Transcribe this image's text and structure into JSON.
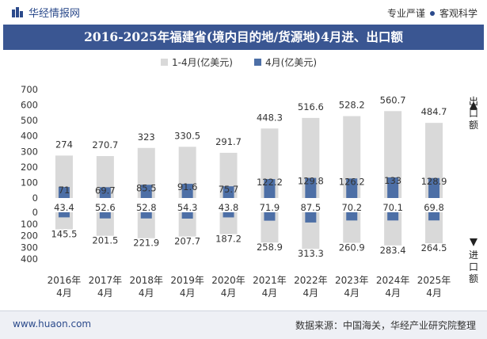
{
  "header": {
    "brand": "华经情报网",
    "tag1": "专业严谨",
    "tag2": "客观科学"
  },
  "title": "2016-2025年福建省(境内目的地/货源地)4月进、出口额",
  "legend": {
    "series1": "1-4月(亿美元)",
    "series2": "4月(亿美元)"
  },
  "right_labels": {
    "export": "出口额",
    "import": "进口额"
  },
  "footer": {
    "site": "www.huaon.com",
    "source": "数据来源：中国海关，华经产业研究院整理"
  },
  "colors": {
    "cumulative": "#d9d9d9",
    "monthly": "#4d6fa6",
    "title_bg": "#3a5692"
  },
  "chart_data": {
    "type": "bar",
    "categories": [
      "2016年\n4月",
      "2017年\n4月",
      "2018年\n4月",
      "2019年\n4月",
      "2020年\n4月",
      "2021年\n4月",
      "2022年\n4月",
      "2023年\n4月",
      "2024年\n4月",
      "2025年\n4月"
    ],
    "series": [
      {
        "name": "1-4月(亿美元)",
        "export": [
          274,
          270.7,
          323,
          330.5,
          291.7,
          448.3,
          516.6,
          528.2,
          560.7,
          484.7
        ],
        "import": [
          145.5,
          201.5,
          221.9,
          207.7,
          187.2,
          258.9,
          313.3,
          260.9,
          283.4,
          264.5
        ]
      },
      {
        "name": "4月(亿美元)",
        "export": [
          71,
          69.7,
          85.5,
          91.6,
          75.7,
          122.2,
          129.8,
          126.2,
          133,
          128.9
        ],
        "import": [
          43.4,
          52.6,
          52.8,
          54.3,
          43.8,
          71.9,
          87.5,
          70.2,
          70.1,
          69.8
        ]
      }
    ],
    "y_top_ticks": [
      700,
      600,
      500,
      400,
      300,
      200,
      100,
      0
    ],
    "y_bottom_ticks": [
      0,
      100,
      200,
      300,
      400
    ],
    "ylim_export": [
      0,
      700
    ],
    "ylim_import": [
      0,
      400
    ],
    "legend_position": "top-center"
  }
}
